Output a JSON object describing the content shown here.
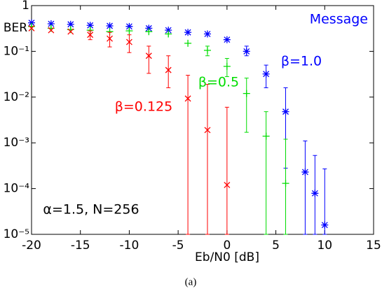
{
  "chart_data": {
    "type": "scatter",
    "log_y": true,
    "grid": false,
    "xlabel": "Eb/N0 [dB]",
    "ylabel": "BER",
    "caption": "(a)",
    "legend_title": "Message",
    "annotations": [
      {
        "text": "β=1.0",
        "color": "#0000ff"
      },
      {
        "text": "β=0.5",
        "color": "#00dd00"
      },
      {
        "text": "β=0.125",
        "color": "#ff0000"
      },
      {
        "text": "α=1.5, N=256",
        "color": "#000000"
      }
    ],
    "xlim": [
      -20,
      15
    ],
    "xticks": [
      -20,
      -15,
      -10,
      -5,
      0,
      5,
      10,
      15
    ],
    "ylim": [
      1e-05,
      1
    ],
    "yticks": [
      1,
      {
        "value": 0.1,
        "label": "10⁻¹"
      },
      {
        "value": 0.01,
        "label": "10⁻²"
      },
      {
        "value": 0.001,
        "label": "10⁻³"
      },
      {
        "value": 0.0001,
        "label": "10⁻⁴"
      },
      {
        "value": 1e-05,
        "label": "10⁻⁵"
      }
    ],
    "series": [
      {
        "color": "#0000ff",
        "marker": "asterisk",
        "x": [
          -20,
          -18,
          -16,
          -14,
          -12,
          -10,
          -8,
          -6,
          -4,
          -2,
          0,
          2,
          4,
          6,
          8,
          9,
          10
        ],
        "values": [
          0.42,
          0.4,
          0.39,
          0.37,
          0.36,
          0.35,
          0.32,
          0.29,
          0.26,
          0.24,
          0.18,
          0.1,
          0.032,
          0.0048,
          0.00023,
          7.9e-05,
          1.6e-05
        ],
        "lower": [
          null,
          null,
          null,
          null,
          null,
          null,
          null,
          null,
          null,
          null,
          null,
          0.08,
          0.016,
          0.00028,
          1e-05,
          1e-05,
          1e-05
        ],
        "upper": [
          null,
          null,
          null,
          null,
          null,
          null,
          null,
          null,
          null,
          null,
          null,
          0.13,
          0.05,
          0.016,
          0.0011,
          0.00053,
          0.00027
        ]
      },
      {
        "color": "#00dd00",
        "marker": "plus",
        "x": [
          -20,
          -18,
          -16,
          -14,
          -12,
          -10,
          -8,
          -6,
          -4,
          -2,
          0,
          2,
          4,
          6
        ],
        "values": [
          0.35,
          0.32,
          0.3,
          0.29,
          0.27,
          0.28,
          0.27,
          0.24,
          0.15,
          0.105,
          0.047,
          0.012,
          0.0014,
          0.00013
        ],
        "lower": [
          null,
          null,
          null,
          null,
          null,
          null,
          null,
          null,
          null,
          0.08,
          0.028,
          0.0017,
          1e-05,
          1e-05
        ],
        "upper": [
          null,
          null,
          null,
          null,
          null,
          null,
          null,
          null,
          null,
          0.13,
          0.07,
          0.026,
          0.0048,
          0.0012
        ]
      },
      {
        "color": "#ff0000",
        "marker": "cross",
        "x": [
          -20,
          -18,
          -16,
          -14,
          -12,
          -10,
          -8,
          -6,
          -4,
          -2,
          0
        ],
        "values": [
          0.32,
          0.29,
          0.27,
          0.23,
          0.19,
          0.16,
          0.08,
          0.039,
          0.0093,
          0.0019,
          0.00012
        ],
        "lower": [
          null,
          null,
          null,
          0.18,
          0.125,
          0.094,
          0.033,
          0.016,
          1e-05,
          1e-05,
          1e-05
        ],
        "upper": [
          null,
          null,
          null,
          0.28,
          0.26,
          0.23,
          0.13,
          0.08,
          0.03,
          0.019,
          0.006
        ]
      }
    ]
  }
}
